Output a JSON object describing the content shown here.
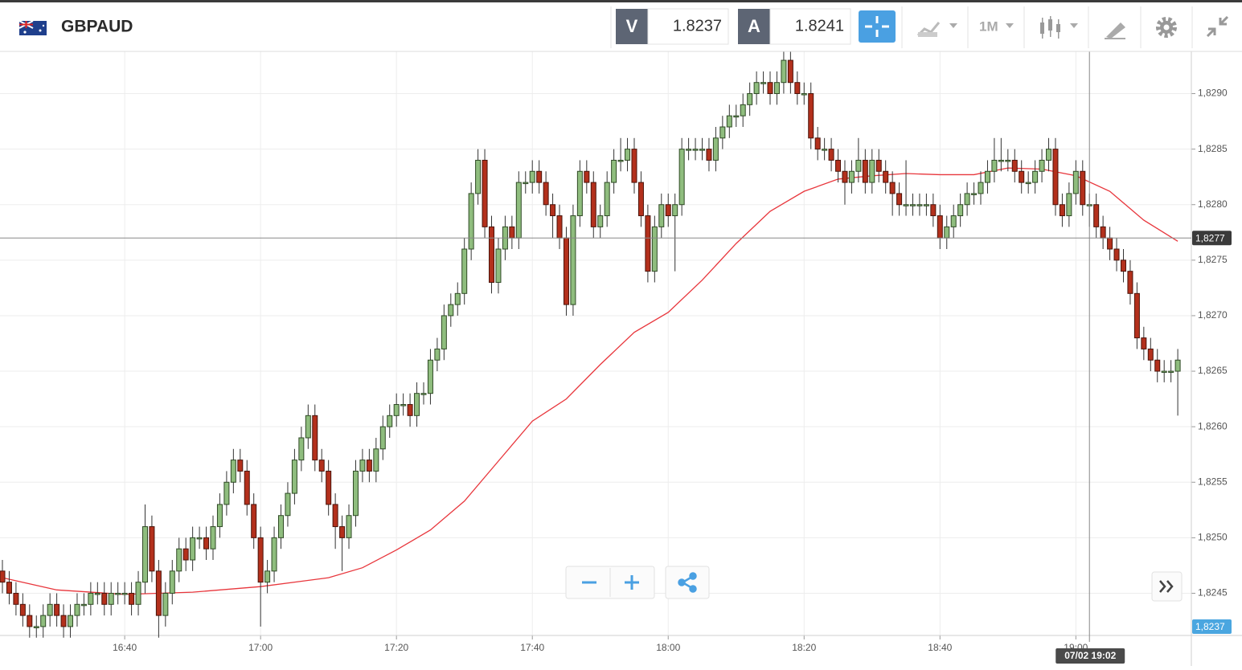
{
  "header": {
    "symbol": "GBPAUD",
    "sell_label": "V",
    "sell_price": "1.8237",
    "buy_label": "A",
    "buy_price": "1.8241",
    "timeframe": "1M"
  },
  "chart_data": {
    "type": "candlestick",
    "up_color": "#8fbd7e",
    "down_color": "#b3301c",
    "x": [
      "16:22",
      "16:23",
      "16:24",
      "16:25",
      "16:26",
      "16:27",
      "16:28",
      "16:29",
      "16:30",
      "16:31",
      "16:32",
      "16:33",
      "16:34",
      "16:35",
      "16:36",
      "16:37",
      "16:38",
      "16:39",
      "16:40",
      "16:41",
      "16:42",
      "16:43",
      "16:44",
      "16:45",
      "16:46",
      "16:47",
      "16:48",
      "16:49",
      "16:50",
      "16:51",
      "16:52",
      "16:53",
      "16:54",
      "16:55",
      "16:56",
      "16:57",
      "16:58",
      "16:59",
      "17:00",
      "17:01",
      "17:02",
      "17:03",
      "17:04",
      "17:05",
      "17:06",
      "17:07",
      "17:08",
      "17:09",
      "17:10",
      "17:11",
      "17:12",
      "17:13",
      "17:14",
      "17:15",
      "17:16",
      "17:17",
      "17:18",
      "17:19",
      "17:20",
      "17:21",
      "17:22",
      "17:23",
      "17:24",
      "17:25",
      "17:26",
      "17:27",
      "17:28",
      "17:29",
      "17:30",
      "17:31",
      "17:32",
      "17:33",
      "17:34",
      "17:35",
      "17:36",
      "17:37",
      "17:38",
      "17:39",
      "17:40",
      "17:41",
      "17:42",
      "17:43",
      "17:44",
      "17:45",
      "17:46",
      "17:47",
      "17:48",
      "17:49",
      "17:50",
      "17:51",
      "17:52",
      "17:53",
      "17:54",
      "17:55",
      "17:56",
      "17:57",
      "17:58",
      "17:59",
      "18:00",
      "18:01",
      "18:02",
      "18:03",
      "18:04",
      "18:05",
      "18:06",
      "18:07",
      "18:08",
      "18:09",
      "18:10",
      "18:11",
      "18:12",
      "18:13",
      "18:14",
      "18:15",
      "18:16",
      "18:17",
      "18:18",
      "18:19",
      "18:20",
      "18:21",
      "18:22",
      "18:23",
      "18:24",
      "18:25",
      "18:26",
      "18:27",
      "18:28",
      "18:29",
      "18:30",
      "18:31",
      "18:32",
      "18:33",
      "18:34",
      "18:35",
      "18:36",
      "18:37",
      "18:38",
      "18:39",
      "18:40",
      "18:41",
      "18:42",
      "18:43",
      "18:44",
      "18:45",
      "18:46",
      "18:47",
      "18:48",
      "18:49",
      "18:50",
      "18:51",
      "18:52",
      "18:53",
      "18:54",
      "18:55",
      "18:56",
      "18:57",
      "18:58",
      "18:59",
      "19:00",
      "19:01",
      "19:02",
      "19:03",
      "19:04",
      "19:05",
      "19:06",
      "19:07",
      "19:08",
      "19:09",
      "19:10",
      "19:11",
      "19:12",
      "19:13",
      "19:14",
      "19:15"
    ],
    "open": [
      1.8247,
      1.8246,
      1.8245,
      1.8244,
      1.8243,
      1.8242,
      1.8242,
      1.8243,
      1.8244,
      1.8243,
      1.8242,
      1.8243,
      1.8244,
      1.8244,
      1.8245,
      1.8245,
      1.8244,
      1.8245,
      1.8245,
      1.8245,
      1.8244,
      1.8246,
      1.8251,
      1.8247,
      1.8243,
      1.8245,
      1.8247,
      1.8249,
      1.8248,
      1.825,
      1.825,
      1.8249,
      1.8251,
      1.8253,
      1.8255,
      1.8257,
      1.8256,
      1.8253,
      1.825,
      1.8246,
      1.8247,
      1.825,
      1.8252,
      1.8254,
      1.8257,
      1.8259,
      1.8261,
      1.8257,
      1.8256,
      1.8253,
      1.8251,
      1.825,
      1.8252,
      1.8256,
      1.8257,
      1.8256,
      1.8258,
      1.826,
      1.8261,
      1.8262,
      1.8262,
      1.8261,
      1.8263,
      1.8263,
      1.8266,
      1.8267,
      1.827,
      1.8271,
      1.8272,
      1.8276,
      1.8281,
      1.8284,
      1.8278,
      1.8273,
      1.8276,
      1.8278,
      1.8277,
      1.8282,
      1.8282,
      1.8283,
      1.8282,
      1.828,
      1.8279,
      1.8277,
      1.8271,
      1.8279,
      1.8283,
      1.8282,
      1.8278,
      1.8279,
      1.8282,
      1.8284,
      1.8284,
      1.8285,
      1.8282,
      1.8279,
      1.8274,
      1.8278,
      1.828,
      1.8279,
      1.828,
      1.8285,
      1.8285,
      1.8285,
      1.8285,
      1.8284,
      1.8286,
      1.8287,
      1.8288,
      1.8288,
      1.8289,
      1.829,
      1.8291,
      1.8291,
      1.829,
      1.8291,
      1.8293,
      1.8291,
      1.829,
      1.829,
      1.8286,
      1.8285,
      1.8285,
      1.8284,
      1.8283,
      1.8282,
      1.8283,
      1.8284,
      1.8282,
      1.8284,
      1.8283,
      1.8282,
      1.8281,
      1.828,
      1.828,
      1.828,
      1.828,
      1.828,
      1.8279,
      1.8277,
      1.8278,
      1.8279,
      1.828,
      1.8281,
      1.8281,
      1.8282,
      1.8283,
      1.8284,
      1.8284,
      1.8284,
      1.8283,
      1.8282,
      1.8282,
      1.8283,
      1.8284,
      1.8285,
      1.828,
      1.8279,
      1.8281,
      1.8283,
      1.828,
      1.828,
      1.8278,
      1.8277,
      1.8276,
      1.8275,
      1.8274,
      1.8272,
      1.8268,
      1.8267,
      1.8266,
      1.8265,
      1.8265,
      1.8265
    ],
    "high": [
      1.8248,
      1.8247,
      1.8246,
      1.8245,
      1.8244,
      1.8243,
      1.8244,
      1.8245,
      1.8245,
      1.8244,
      1.8244,
      1.8245,
      1.8245,
      1.8246,
      1.8246,
      1.8246,
      1.8246,
      1.8246,
      1.8246,
      1.8246,
      1.8247,
      1.8253,
      1.8252,
      1.8248,
      1.8246,
      1.8248,
      1.825,
      1.825,
      1.8251,
      1.8251,
      1.8251,
      1.8252,
      1.8254,
      1.8256,
      1.8258,
      1.8258,
      1.8257,
      1.8254,
      1.8251,
      1.8248,
      1.8251,
      1.8253,
      1.8255,
      1.8258,
      1.826,
      1.8262,
      1.8262,
      1.8258,
      1.8257,
      1.8254,
      1.8252,
      1.8253,
      1.8257,
      1.8258,
      1.8258,
      1.8259,
      1.8261,
      1.8262,
      1.8263,
      1.8263,
      1.8263,
      1.8264,
      1.8264,
      1.8267,
      1.8268,
      1.8271,
      1.8272,
      1.8273,
      1.8277,
      1.8282,
      1.8285,
      1.8285,
      1.8279,
      1.8277,
      1.8279,
      1.8279,
      1.8283,
      1.8283,
      1.8284,
      1.8284,
      1.8283,
      1.8281,
      1.828,
      1.8278,
      1.828,
      1.8284,
      1.8284,
      1.8283,
      1.828,
      1.8283,
      1.8285,
      1.8286,
      1.8286,
      1.8286,
      1.8283,
      1.828,
      1.8279,
      1.8281,
      1.8281,
      1.8281,
      1.8286,
      1.8286,
      1.8286,
      1.8286,
      1.8286,
      1.8287,
      1.8288,
      1.8289,
      1.8289,
      1.829,
      1.8291,
      1.8292,
      1.8292,
      1.8292,
      1.8292,
      1.8294,
      1.8294,
      1.8292,
      1.8291,
      1.8291,
      1.8287,
      1.8286,
      1.8286,
      1.8285,
      1.8284,
      1.8284,
      1.8286,
      1.8285,
      1.8285,
      1.8285,
      1.8284,
      1.8283,
      1.8282,
      1.8284,
      1.8281,
      1.8281,
      1.8281,
      1.8281,
      1.828,
      1.8279,
      1.828,
      1.8281,
      1.8282,
      1.8282,
      1.8283,
      1.8284,
      1.8286,
      1.8286,
      1.8285,
      1.8285,
      1.8284,
      1.8283,
      1.8284,
      1.8285,
      1.8286,
      1.8286,
      1.8281,
      1.8282,
      1.8284,
      1.8284,
      1.8281,
      1.8281,
      1.8279,
      1.8278,
      1.8277,
      1.8276,
      1.8275,
      1.8273,
      1.8269,
      1.8268,
      1.8267,
      1.8266,
      1.8266,
      1.8267
    ],
    "low": [
      1.8245,
      1.8244,
      1.8243,
      1.8242,
      1.8241,
      1.8241,
      1.8241,
      1.8242,
      1.8242,
      1.8241,
      1.8241,
      1.8242,
      1.8243,
      1.8243,
      1.8244,
      1.8243,
      1.8243,
      1.8244,
      1.8244,
      1.8243,
      1.8243,
      1.8245,
      1.8246,
      1.8241,
      1.8242,
      1.8244,
      1.8246,
      1.8247,
      1.8247,
      1.8249,
      1.8248,
      1.8248,
      1.825,
      1.8252,
      1.8254,
      1.8255,
      1.8252,
      1.8249,
      1.8242,
      1.8245,
      1.8246,
      1.8249,
      1.8251,
      1.8253,
      1.8256,
      1.8258,
      1.8256,
      1.8255,
      1.8252,
      1.8249,
      1.8247,
      1.8249,
      1.8251,
      1.8255,
      1.8255,
      1.8255,
      1.8257,
      1.8259,
      1.826,
      1.8261,
      1.826,
      1.826,
      1.8262,
      1.8262,
      1.8265,
      1.8266,
      1.8269,
      1.827,
      1.8271,
      1.8275,
      1.828,
      1.8277,
      1.8272,
      1.8272,
      1.8275,
      1.8276,
      1.8276,
      1.8281,
      1.8281,
      1.8281,
      1.8279,
      1.8277,
      1.8276,
      1.827,
      1.827,
      1.8278,
      1.8281,
      1.8277,
      1.8277,
      1.8278,
      1.8281,
      1.8283,
      1.8283,
      1.8281,
      1.8278,
      1.8273,
      1.8273,
      1.8277,
      1.8278,
      1.8274,
      1.8279,
      1.8284,
      1.8284,
      1.8284,
      1.8283,
      1.8283,
      1.8285,
      1.8286,
      1.8287,
      1.8287,
      1.8288,
      1.8289,
      1.829,
      1.8289,
      1.8289,
      1.829,
      1.829,
      1.8289,
      1.8289,
      1.8285,
      1.8284,
      1.8284,
      1.8283,
      1.8282,
      1.828,
      1.8281,
      1.8282,
      1.8281,
      1.8281,
      1.8282,
      1.8281,
      1.8279,
      1.8279,
      1.8279,
      1.8279,
      1.8279,
      1.8279,
      1.8278,
      1.8276,
      1.8276,
      1.8277,
      1.8278,
      1.8279,
      1.828,
      1.828,
      1.8281,
      1.8282,
      1.8283,
      1.8283,
      1.8282,
      1.8281,
      1.8281,
      1.8281,
      1.8282,
      1.8283,
      1.8279,
      1.8278,
      1.8278,
      1.828,
      1.8279,
      1.8278,
      1.8277,
      1.8276,
      1.8275,
      1.8274,
      1.8273,
      1.8271,
      1.8267,
      1.8266,
      1.8265,
      1.8264,
      1.8264,
      1.8264,
      1.8261
    ],
    "close": [
      1.8246,
      1.8245,
      1.8244,
      1.8243,
      1.8242,
      1.8242,
      1.8243,
      1.8244,
      1.8243,
      1.8242,
      1.8243,
      1.8244,
      1.8244,
      1.8245,
      1.8245,
      1.8244,
      1.8245,
      1.8245,
      1.8245,
      1.8244,
      1.8246,
      1.8251,
      1.8247,
      1.8243,
      1.8245,
      1.8247,
      1.8249,
      1.8248,
      1.825,
      1.825,
      1.8249,
      1.8251,
      1.8253,
      1.8255,
      1.8257,
      1.8256,
      1.8253,
      1.825,
      1.8246,
      1.8247,
      1.825,
      1.8252,
      1.8254,
      1.8257,
      1.8259,
      1.8261,
      1.8257,
      1.8256,
      1.8253,
      1.8251,
      1.825,
      1.8252,
      1.8256,
      1.8257,
      1.8256,
      1.8258,
      1.826,
      1.8261,
      1.8262,
      1.8262,
      1.8261,
      1.8263,
      1.8263,
      1.8266,
      1.8267,
      1.827,
      1.8271,
      1.8272,
      1.8276,
      1.8281,
      1.8284,
      1.8278,
      1.8273,
      1.8276,
      1.8278,
      1.8277,
      1.8282,
      1.8282,
      1.8283,
      1.8282,
      1.828,
      1.8279,
      1.8277,
      1.8271,
      1.8279,
      1.8283,
      1.8282,
      1.8278,
      1.8279,
      1.8282,
      1.8284,
      1.8284,
      1.8285,
      1.8282,
      1.8279,
      1.8274,
      1.8278,
      1.828,
      1.8279,
      1.828,
      1.8285,
      1.8285,
      1.8285,
      1.8285,
      1.8284,
      1.8286,
      1.8287,
      1.8288,
      1.8288,
      1.8289,
      1.829,
      1.8291,
      1.8291,
      1.829,
      1.8291,
      1.8293,
      1.8291,
      1.829,
      1.829,
      1.8286,
      1.8285,
      1.8285,
      1.8284,
      1.8283,
      1.8282,
      1.8283,
      1.8284,
      1.8282,
      1.8284,
      1.8283,
      1.8282,
      1.8281,
      1.828,
      1.828,
      1.828,
      1.828,
      1.828,
      1.8279,
      1.8277,
      1.8278,
      1.8279,
      1.828,
      1.8281,
      1.8281,
      1.8282,
      1.8283,
      1.8284,
      1.8284,
      1.8284,
      1.8283,
      1.8282,
      1.8282,
      1.8283,
      1.8284,
      1.8285,
      1.828,
      1.8279,
      1.8281,
      1.8283,
      1.828,
      1.828,
      1.8278,
      1.8277,
      1.8276,
      1.8275,
      1.8274,
      1.8272,
      1.8268,
      1.8267,
      1.8266,
      1.8265,
      1.8265,
      1.8265,
      1.8266
    ],
    "moving_average": {
      "color": "#e8363c",
      "x": [
        "16:22",
        "16:30",
        "16:40",
        "16:50",
        "17:00",
        "17:10",
        "17:15",
        "17:20",
        "17:25",
        "17:30",
        "17:35",
        "17:40",
        "17:45",
        "17:50",
        "17:55",
        "18:00",
        "18:05",
        "18:10",
        "18:15",
        "18:20",
        "18:25",
        "18:30",
        "18:35",
        "18:40",
        "18:45",
        "18:50",
        "18:55",
        "19:00",
        "19:05",
        "19:10",
        "19:15"
      ],
      "values": [
        1.82464,
        1.82453,
        1.82449,
        1.82451,
        1.82456,
        1.82464,
        1.82473,
        1.82489,
        1.82507,
        1.82533,
        1.82569,
        1.82605,
        1.82625,
        1.82656,
        1.82685,
        1.82703,
        1.82732,
        1.82765,
        1.82794,
        1.82812,
        1.82823,
        1.82826,
        1.82828,
        1.82827,
        1.82827,
        1.82833,
        1.82832,
        1.82826,
        1.82812,
        1.82786,
        1.82767
      ]
    },
    "xlim": [
      "16:22",
      "19:17"
    ],
    "xticks": [
      "16:40",
      "17:00",
      "17:20",
      "17:40",
      "18:00",
      "18:20",
      "18:40",
      "19:00"
    ],
    "ylim": [
      1.82412,
      1.82938
    ],
    "yticks": [
      {
        "value": 1.8245,
        "label": "1,8245"
      },
      {
        "value": 1.825,
        "label": "1,8250"
      },
      {
        "value": 1.8255,
        "label": "1,8255"
      },
      {
        "value": 1.826,
        "label": "1,8260"
      },
      {
        "value": 1.8265,
        "label": "1,8265"
      },
      {
        "value": 1.827,
        "label": "1,8270"
      },
      {
        "value": 1.8275,
        "label": "1,8275"
      },
      {
        "value": 1.828,
        "label": "1,8280"
      },
      {
        "value": 1.8285,
        "label": "1,8285"
      },
      {
        "value": 1.829,
        "label": "1,8290"
      }
    ],
    "grid": true,
    "crosshair": {
      "price": {
        "value": 1.8277,
        "label": "1,8277"
      },
      "time": "07/02 19:02"
    },
    "current_price": {
      "value": 1.8237,
      "label": "1,8237"
    }
  }
}
